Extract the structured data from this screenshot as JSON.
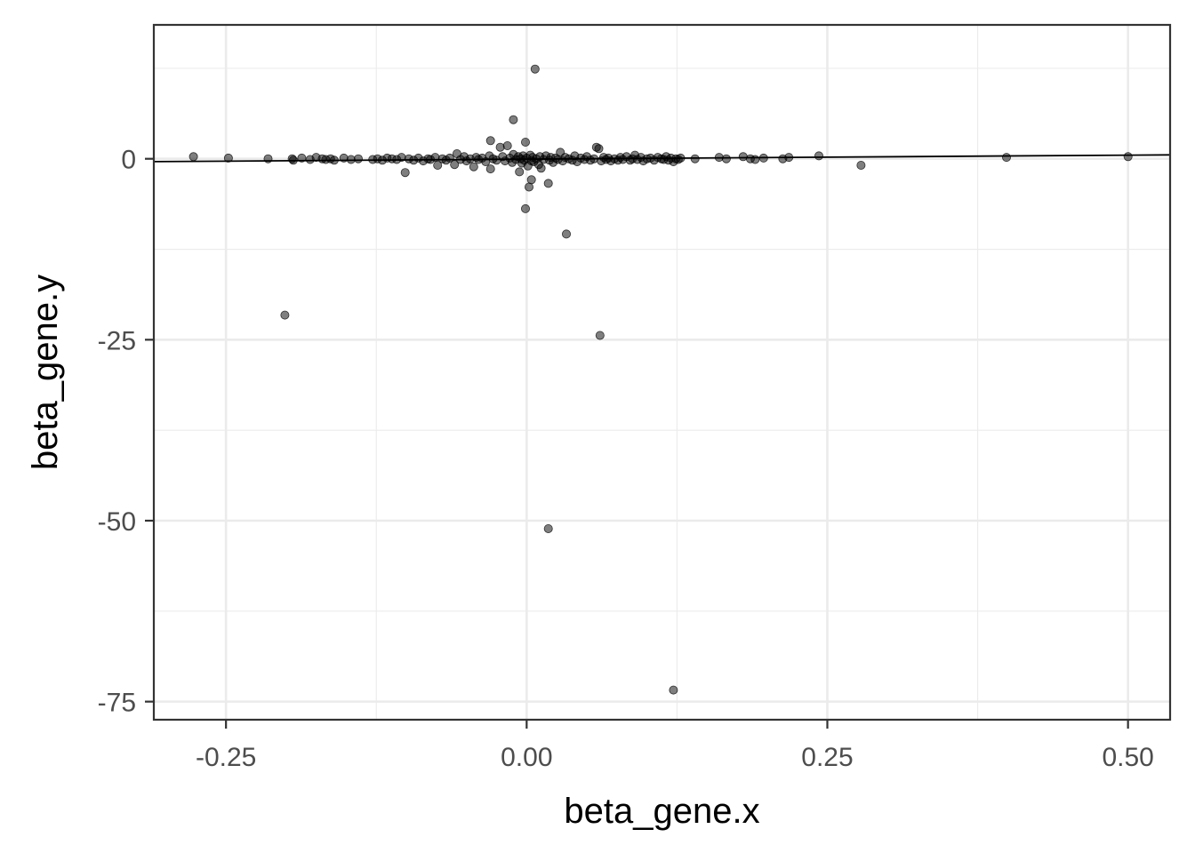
{
  "chart_data": {
    "type": "scatter",
    "xlabel": "beta_gene.x",
    "ylabel": "beta_gene.y",
    "xlim": [
      -0.31,
      0.535
    ],
    "ylim": [
      -77.5,
      18.5
    ],
    "x_ticks": [
      -0.25,
      0.0,
      0.25,
      0.5
    ],
    "x_tick_labels": [
      "-0.25",
      "0.00",
      "0.25",
      "0.50"
    ],
    "y_ticks": [
      0,
      -25,
      -50,
      -75
    ],
    "y_tick_labels": [
      "0",
      "-25",
      "-50",
      "-75"
    ],
    "x_minor_ticks": [
      -0.125,
      0.125,
      0.375
    ],
    "y_minor_ticks": [
      12.5,
      -12.5,
      -37.5,
      -62.5
    ],
    "grid": true,
    "theme": "bw",
    "point_color": "#000000",
    "point_opacity": 0.5,
    "line_color": "#000000",
    "regression_line": {
      "slope": 1.1,
      "intercept": -0.05
    },
    "points": [
      [
        -0.277,
        0.3
      ],
      [
        -0.248,
        0.1
      ],
      [
        -0.215,
        0.0
      ],
      [
        -0.195,
        0.0
      ],
      [
        -0.194,
        -0.2
      ],
      [
        -0.187,
        0.1
      ],
      [
        -0.18,
        -0.1
      ],
      [
        -0.175,
        0.2
      ],
      [
        -0.17,
        0.0
      ],
      [
        -0.167,
        -0.1
      ],
      [
        -0.163,
        0.0
      ],
      [
        -0.16,
        -0.2
      ],
      [
        -0.152,
        0.1
      ],
      [
        -0.146,
        -0.1
      ],
      [
        -0.14,
        0.0
      ],
      [
        -0.128,
        -0.1
      ],
      [
        -0.124,
        0.0
      ],
      [
        -0.12,
        -0.2
      ],
      [
        -0.116,
        0.1
      ],
      [
        -0.112,
        0.0
      ],
      [
        -0.108,
        -0.1
      ],
      [
        -0.104,
        0.2
      ],
      [
        -0.101,
        -1.9
      ],
      [
        -0.098,
        0.0
      ],
      [
        -0.094,
        -0.2
      ],
      [
        -0.09,
        0.1
      ],
      [
        -0.086,
        -0.3
      ],
      [
        -0.082,
        0.0
      ],
      [
        -0.08,
        -0.1
      ],
      [
        -0.076,
        0.2
      ],
      [
        -0.074,
        -0.9
      ],
      [
        -0.07,
        0.0
      ],
      [
        -0.067,
        -0.2
      ],
      [
        -0.064,
        0.1
      ],
      [
        -0.06,
        -0.8
      ],
      [
        -0.058,
        0.7
      ],
      [
        -0.055,
        -0.1
      ],
      [
        -0.052,
        0.3
      ],
      [
        -0.05,
        -0.3
      ],
      [
        -0.047,
        0.0
      ],
      [
        -0.044,
        -1.1
      ],
      [
        -0.042,
        0.2
      ],
      [
        -0.04,
        -0.1
      ],
      [
        -0.037,
        0.1
      ],
      [
        -0.034,
        -0.4
      ],
      [
        -0.031,
        0.4
      ],
      [
        -0.03,
        -1.4
      ],
      [
        -0.028,
        0.0
      ],
      [
        -0.03,
        2.5
      ],
      [
        -0.025,
        -0.2
      ],
      [
        -0.022,
        1.6
      ],
      [
        -0.02,
        0.3
      ],
      [
        -0.018,
        -0.3
      ],
      [
        -0.016,
        1.8
      ],
      [
        -0.014,
        0.1
      ],
      [
        -0.012,
        -0.5
      ],
      [
        -0.011,
        0.6
      ],
      [
        -0.011,
        5.4
      ],
      [
        -0.009,
        -0.1
      ],
      [
        -0.007,
        0.3
      ],
      [
        -0.006,
        -1.8
      ],
      [
        -0.005,
        0.0
      ],
      [
        -0.004,
        -0.6
      ],
      [
        -0.003,
        0.4
      ],
      [
        -0.002,
        -0.2
      ],
      [
        -0.001,
        2.3
      ],
      [
        -0.001,
        -6.9
      ],
      [
        0.0,
        0.1
      ],
      [
        0.001,
        -1.0
      ],
      [
        0.002,
        -3.9
      ],
      [
        0.003,
        0.5
      ],
      [
        0.004,
        -0.3
      ],
      [
        0.004,
        -2.9
      ],
      [
        0.005,
        0.2
      ],
      [
        0.006,
        -0.4
      ],
      [
        0.007,
        12.4
      ],
      [
        0.008,
        0.0
      ],
      [
        0.01,
        -0.8
      ],
      [
        0.011,
        0.3
      ],
      [
        0.012,
        -1.3
      ],
      [
        0.014,
        -0.1
      ],
      [
        0.016,
        0.4
      ],
      [
        0.018,
        -3.4
      ],
      [
        0.019,
        -0.2
      ],
      [
        0.02,
        0.2
      ],
      [
        0.022,
        -0.5
      ],
      [
        0.024,
        0.1
      ],
      [
        0.026,
        -0.1
      ],
      [
        0.028,
        0.9
      ],
      [
        0.03,
        -0.3
      ],
      [
        0.032,
        0.2
      ],
      [
        0.033,
        -10.4
      ],
      [
        0.035,
        0.0
      ],
      [
        0.038,
        -0.2
      ],
      [
        0.04,
        0.4
      ],
      [
        0.042,
        -0.4
      ],
      [
        0.045,
        0.1
      ],
      [
        0.048,
        -0.1
      ],
      [
        0.05,
        0.3
      ],
      [
        0.053,
        -0.2
      ],
      [
        0.056,
        0.0
      ],
      [
        0.058,
        1.6
      ],
      [
        0.06,
        1.4
      ],
      [
        0.062,
        -0.3
      ],
      [
        0.064,
        0.2
      ],
      [
        0.066,
        -0.1
      ],
      [
        0.068,
        0.1
      ],
      [
        0.07,
        -0.3
      ],
      [
        0.073,
        0.0
      ],
      [
        0.076,
        -0.2
      ],
      [
        0.078,
        0.2
      ],
      [
        0.08,
        -0.1
      ],
      [
        0.083,
        0.3
      ],
      [
        0.086,
        -0.2
      ],
      [
        0.088,
        0.0
      ],
      [
        0.09,
        0.5
      ],
      [
        0.092,
        -0.1
      ],
      [
        0.095,
        0.2
      ],
      [
        0.097,
        -0.3
      ],
      [
        0.1,
        0.0
      ],
      [
        0.103,
        0.1
      ],
      [
        0.106,
        -0.2
      ],
      [
        0.109,
        0.2
      ],
      [
        0.112,
        0.0
      ],
      [
        0.114,
        -0.1
      ],
      [
        0.116,
        0.3
      ],
      [
        0.118,
        -0.2
      ],
      [
        0.12,
        0.1
      ],
      [
        0.122,
        -0.4
      ],
      [
        0.124,
        0.0
      ],
      [
        0.126,
        -0.1
      ],
      [
        0.128,
        0.1
      ],
      [
        0.061,
        -24.4
      ],
      [
        0.018,
        -51.1
      ],
      [
        0.122,
        -73.4
      ],
      [
        -0.201,
        -21.6
      ],
      [
        0.14,
        0.0
      ],
      [
        0.16,
        0.2
      ],
      [
        0.166,
        0.0
      ],
      [
        0.18,
        0.3
      ],
      [
        0.186,
        0.0
      ],
      [
        0.19,
        -0.1
      ],
      [
        0.197,
        0.1
      ],
      [
        0.213,
        0.0
      ],
      [
        0.218,
        0.2
      ],
      [
        0.243,
        0.4
      ],
      [
        0.278,
        -0.9
      ],
      [
        0.399,
        0.2
      ],
      [
        0.5,
        0.3
      ]
    ]
  }
}
